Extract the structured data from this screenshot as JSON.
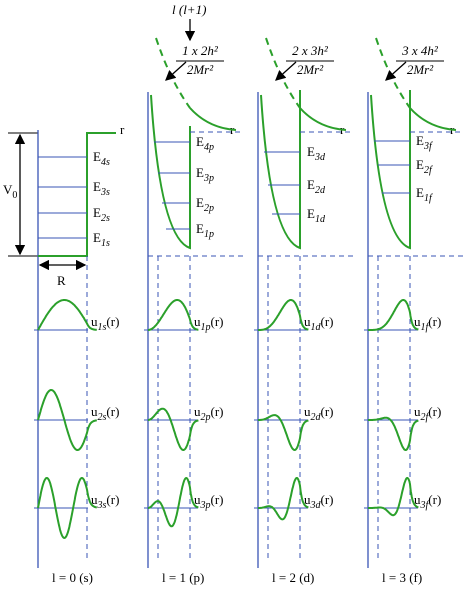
{
  "header": {
    "label": "l (l+1)"
  },
  "well": {
    "depth": {
      "main": "V",
      "sub": "0"
    },
    "radius": "R"
  },
  "columns": [
    {
      "axis_label": "r",
      "levels": [
        {
          "main": "E",
          "sub": "4s"
        },
        {
          "main": "E",
          "sub": "3s"
        },
        {
          "main": "E",
          "sub": "2s"
        },
        {
          "main": "E",
          "sub": "1s"
        }
      ],
      "functions": [
        {
          "main": "u",
          "sub": "1s",
          "arg": "(r)"
        },
        {
          "main": "u",
          "sub": "2s",
          "arg": "(r)"
        },
        {
          "main": "u",
          "sub": "3s",
          "arg": "(r)"
        }
      ],
      "caption": "l = 0 (s)"
    },
    {
      "barrier": {
        "numerator": "1 x 2h²",
        "denominator": "2Mr²"
      },
      "axis_label": "r",
      "levels": [
        {
          "main": "E",
          "sub": "4p"
        },
        {
          "main": "E",
          "sub": "3p"
        },
        {
          "main": "E",
          "sub": "2p"
        },
        {
          "main": "E",
          "sub": "1p"
        }
      ],
      "functions": [
        {
          "main": "u",
          "sub": "1p",
          "arg": "(r)"
        },
        {
          "main": "u",
          "sub": "2p",
          "arg": "(r)"
        },
        {
          "main": "u",
          "sub": "3p",
          "arg": "(r)"
        }
      ],
      "caption": "l = 1 (p)"
    },
    {
      "barrier": {
        "numerator": "2 x 3h²",
        "denominator": "2Mr²"
      },
      "axis_label": "r",
      "levels": [
        {
          "main": "E",
          "sub": "3d"
        },
        {
          "main": "E",
          "sub": "2d"
        },
        {
          "main": "E",
          "sub": "1d"
        }
      ],
      "functions": [
        {
          "main": "u",
          "sub": "1d",
          "arg": "(r)"
        },
        {
          "main": "u",
          "sub": "2d",
          "arg": "(r)"
        },
        {
          "main": "u",
          "sub": "3d",
          "arg": "(r)"
        }
      ],
      "caption": "l = 2 (d)"
    },
    {
      "barrier": {
        "numerator": "3 x 4h²",
        "denominator": "2Mr²"
      },
      "axis_label": "r",
      "levels": [
        {
          "main": "E",
          "sub": "3f"
        },
        {
          "main": "E",
          "sub": "2f"
        },
        {
          "main": "E",
          "sub": "1f"
        }
      ],
      "functions": [
        {
          "main": "u",
          "sub": "1f",
          "arg": "(r)"
        },
        {
          "main": "u",
          "sub": "2f",
          "arg": "(r)"
        },
        {
          "main": "u",
          "sub": "3f",
          "arg": "(r)"
        }
      ],
      "caption": "l = 3 (f)"
    }
  ]
}
